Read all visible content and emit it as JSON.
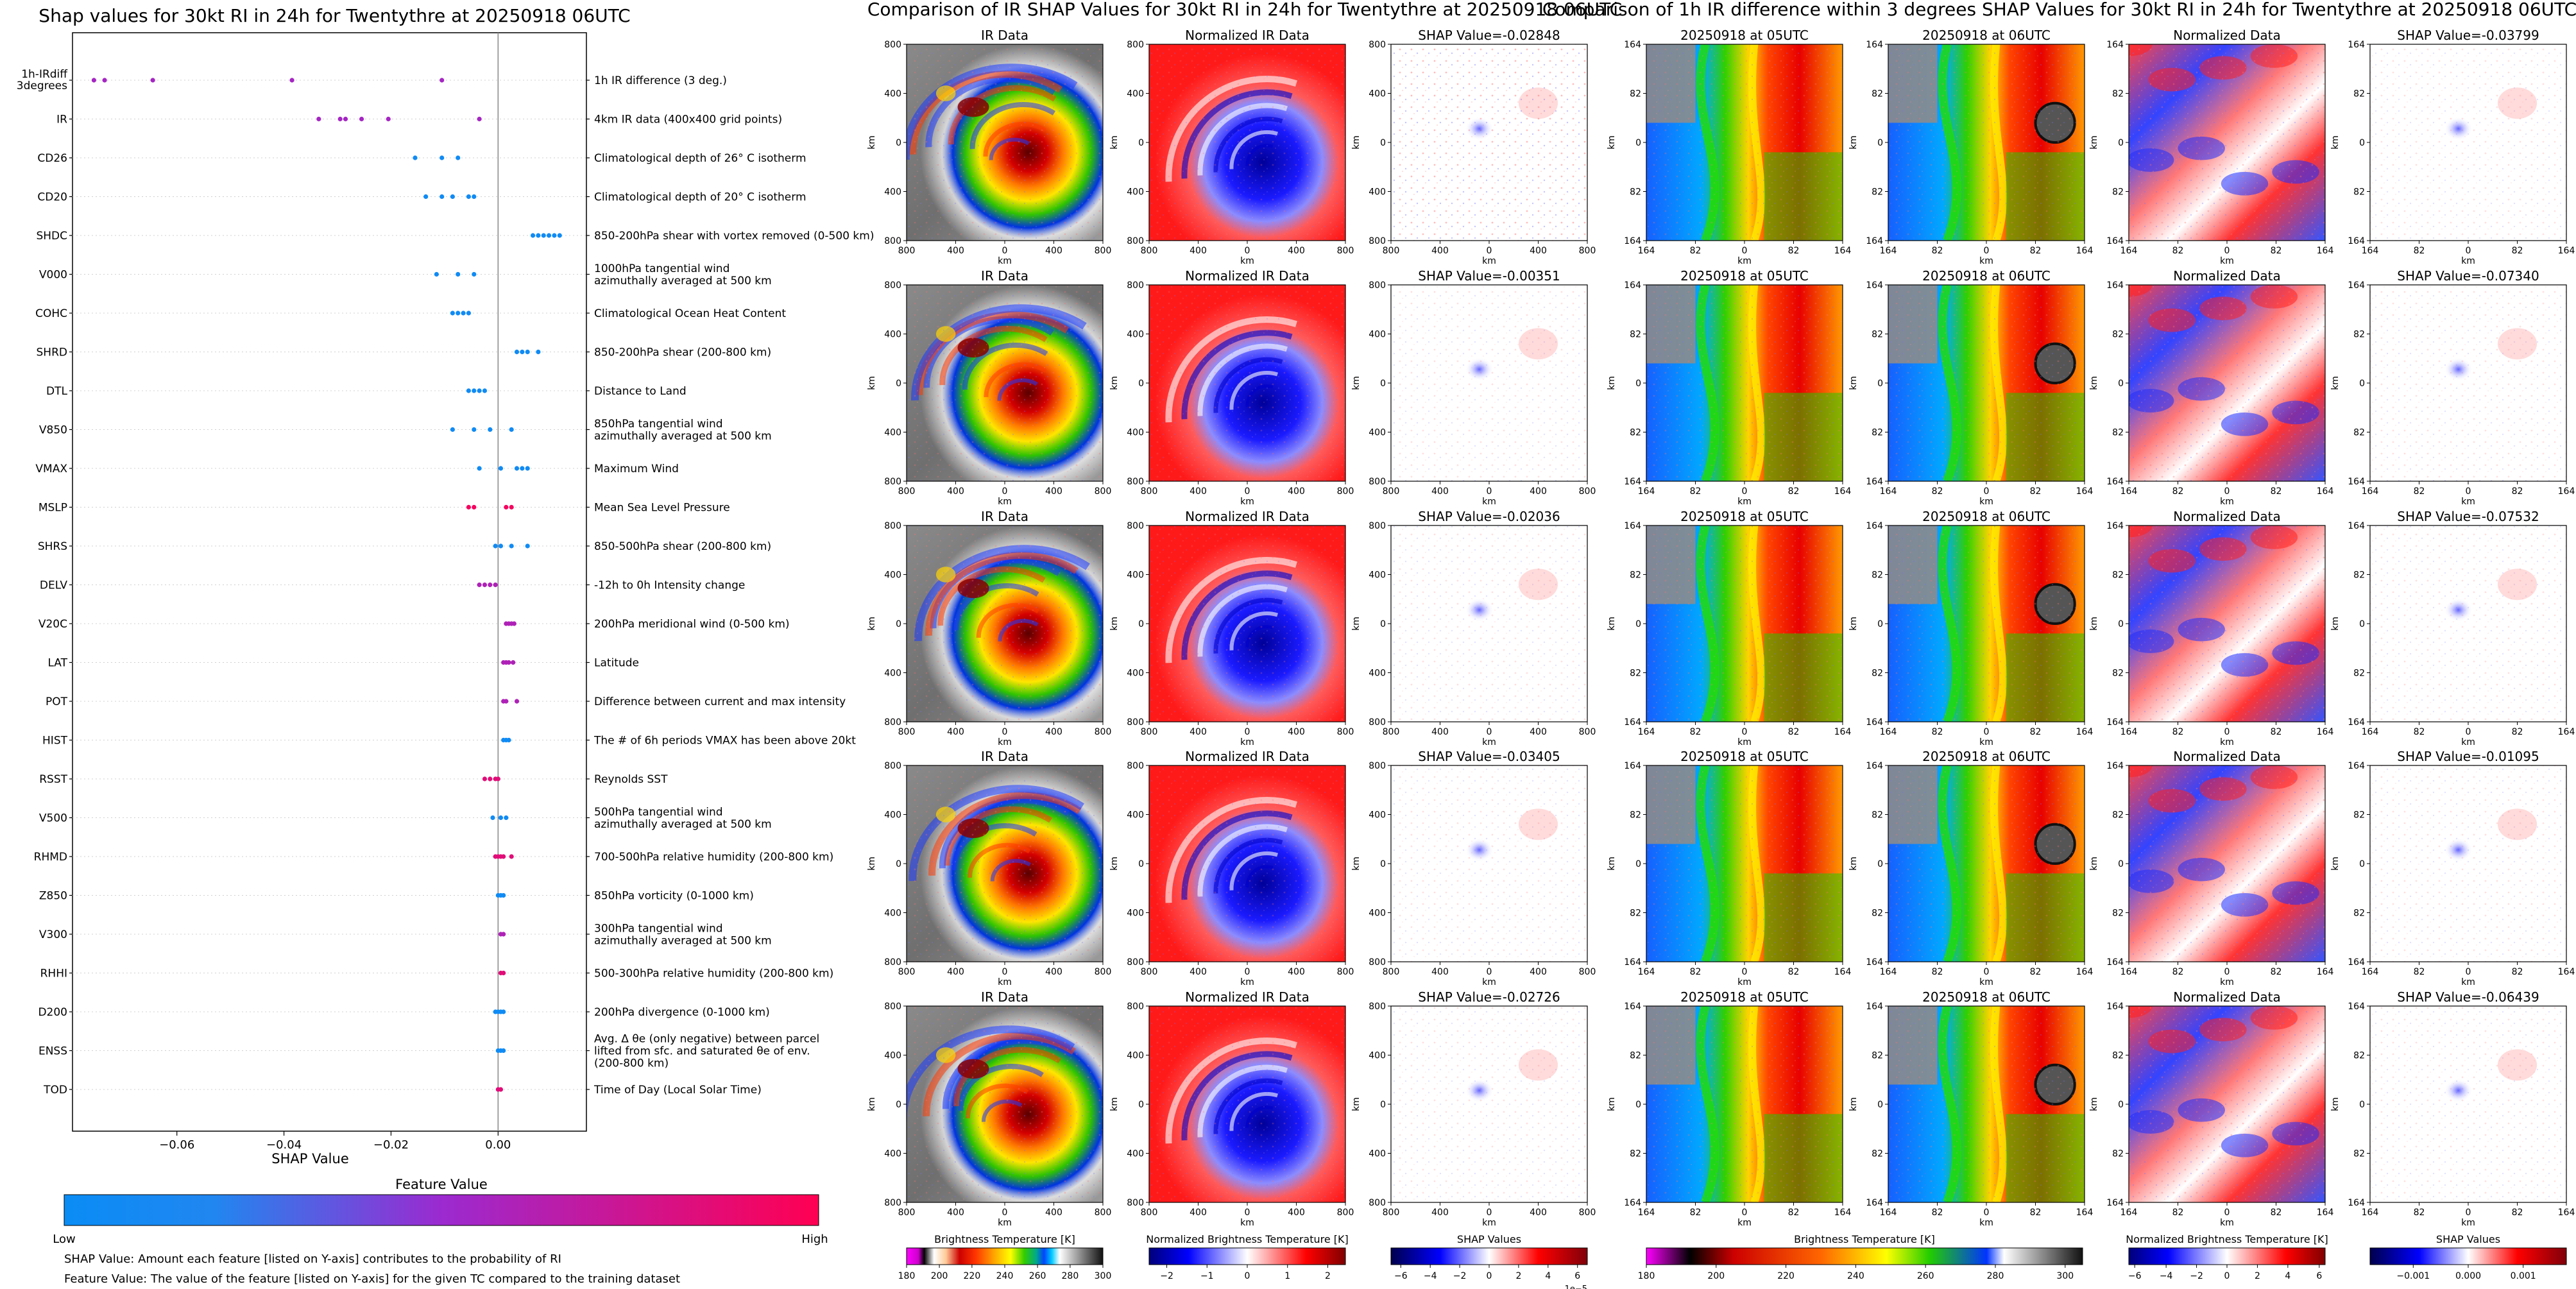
{
  "shap_panel": {
    "title": "Shap values for 30kt RI in 24h for Twentythre at 20250918 06UTC",
    "xlabel": "SHAP Value",
    "xticks": [
      "−0.06",
      "−0.04",
      "−0.02",
      "0.00"
    ],
    "colorbar": {
      "title": "Feature Value",
      "low_label": "Low",
      "high_label": "High"
    },
    "notes": [
      "SHAP Value: Amount each feature [listed on Y-axis] contributes to the probability of RI",
      "Feature Value: The value of the feature [listed on Y-axis] for the given TC compared to the training dataset"
    ]
  },
  "chart_data": {
    "type": "scatter",
    "xlim": [
      -0.0795,
      0.0165
    ],
    "features": [
      {
        "code": "1h-IRdiff 3degrees",
        "desc": "1h IR difference (3 deg.)",
        "c": 0.55,
        "v": [
          -0.0755,
          -0.0735,
          -0.0645,
          -0.0385,
          -0.0105
        ]
      },
      {
        "code": "IR",
        "desc": "4km IR data (400x400 grid points)",
        "c": 0.55,
        "v": [
          -0.0335,
          -0.0295,
          -0.0285,
          -0.0255,
          -0.0205,
          -0.0035
        ]
      },
      {
        "code": "CD26",
        "desc": "Climatological depth of 26° C isotherm",
        "c": 0.05,
        "v": [
          -0.0155,
          -0.0105,
          -0.0075
        ]
      },
      {
        "code": "CD20",
        "desc": "Climatological depth of 20° C isotherm",
        "c": 0.05,
        "v": [
          -0.0135,
          -0.0105,
          -0.0085,
          -0.0055,
          -0.0045
        ]
      },
      {
        "code": "SHDC",
        "desc": "850-200hPa shear with vortex removed (0-500 km)",
        "c": 0.05,
        "v": [
          0.0065,
          0.0075,
          0.0085,
          0.0095,
          0.0105,
          0.0115
        ]
      },
      {
        "code": "V000",
        "desc": "1000hPa tangential wind azimuthally averaged at 500 km",
        "c": 0.05,
        "v": [
          -0.0115,
          -0.0075,
          -0.0045
        ]
      },
      {
        "code": "COHC",
        "desc": "Climatological Ocean Heat Content",
        "c": 0.05,
        "v": [
          -0.0085,
          -0.0075,
          -0.0065,
          -0.0055
        ]
      },
      {
        "code": "SHRD",
        "desc": "850-200hPa shear (200-800 km)",
        "c": 0.05,
        "v": [
          0.0035,
          0.0045,
          0.0055,
          0.0075
        ]
      },
      {
        "code": "DTL",
        "desc": "Distance to Land",
        "c": 0.05,
        "v": [
          -0.0055,
          -0.0045,
          -0.0035,
          -0.0025
        ]
      },
      {
        "code": "V850",
        "desc": "850hPa tangential wind azimuthally averaged at 500 km",
        "c": 0.05,
        "v": [
          -0.0085,
          -0.0045,
          -0.0015,
          0.0025
        ]
      },
      {
        "code": "VMAX",
        "desc": "Maximum Wind",
        "c": 0.05,
        "v": [
          -0.0035,
          0.0005,
          0.0035,
          0.0045,
          0.0055
        ]
      },
      {
        "code": "MSLP",
        "desc": "Mean Sea Level Pressure",
        "c": 0.95,
        "v": [
          -0.0055,
          -0.0045,
          0.0015,
          0.0025
        ]
      },
      {
        "code": "SHRS",
        "desc": "850-500hPa shear (200-800 km)",
        "c": 0.05,
        "v": [
          -0.0005,
          0.0005,
          0.0025,
          0.0055
        ]
      },
      {
        "code": "DELV",
        "desc": "-12h to 0h Intensity change",
        "c": 0.6,
        "v": [
          -0.0035,
          -0.0025,
          -0.0015,
          -0.0005
        ]
      },
      {
        "code": "V20C",
        "desc": "200hPa meridional wind (0-500 km)",
        "c": 0.6,
        "v": [
          0.0015,
          0.002,
          0.0025,
          0.003
        ]
      },
      {
        "code": "LAT",
        "desc": "Latitude",
        "c": 0.6,
        "v": [
          0.001,
          0.0015,
          0.002,
          0.0028
        ]
      },
      {
        "code": "POT",
        "desc": "Difference between current and max intensity",
        "c": 0.6,
        "v": [
          0.001,
          0.0015,
          0.0035
        ]
      },
      {
        "code": "HIST",
        "desc": "The # of 6h periods VMAX has been above 20kt",
        "c": 0.05,
        "v": [
          0.001,
          0.0015,
          0.002
        ]
      },
      {
        "code": "RSST",
        "desc": "Reynolds SST",
        "c": 0.85,
        "v": [
          -0.0025,
          -0.0015,
          -0.0005,
          0.0
        ]
      },
      {
        "code": "V500",
        "desc": "500hPa tangential wind azimuthally averaged at 500 km",
        "c": 0.05,
        "v": [
          -0.001,
          0.0005,
          0.0015
        ]
      },
      {
        "code": "RHMD",
        "desc": "700-500hPa relative humidity (200-800 km)",
        "c": 0.85,
        "v": [
          -0.0005,
          0.0,
          0.0005,
          0.001,
          0.0025
        ]
      },
      {
        "code": "Z850",
        "desc": "850hPa vorticity (0-1000 km)",
        "c": 0.05,
        "v": [
          0.0,
          0.0005,
          0.001
        ]
      },
      {
        "code": "V300",
        "desc": "300hPa tangential wind azimuthally averaged at 500 km",
        "c": 0.6,
        "v": [
          0.0005,
          0.001
        ]
      },
      {
        "code": "RHHI",
        "desc": "500-300hPa relative humidity (200-800 km)",
        "c": 0.85,
        "v": [
          0.0005,
          0.001
        ]
      },
      {
        "code": "D200",
        "desc": "200hPa divergence (0-1000 km)",
        "c": 0.05,
        "v": [
          -0.0005,
          0.0,
          0.0005,
          0.001
        ]
      },
      {
        "code": "ENSS",
        "desc": "Avg. Δ θe (only negative) between parcel lifted from sfc. and saturated θe of env. (200-800 km)",
        "c": 0.05,
        "v": [
          0.0,
          0.0005,
          0.001
        ]
      },
      {
        "code": "TOD",
        "desc": "Time of Day (Local Solar Time)",
        "c": 0.85,
        "v": [
          0.0,
          0.0005
        ]
      }
    ]
  },
  "ir_block": {
    "title": "Comparison of IR SHAP Values for 30kt RI in 24h for Twentythre at 20250918 06UTC",
    "col_titles": [
      "IR Data",
      "Normalized IR Data"
    ],
    "shap_values": [
      "SHAP Value=-0.02848",
      "SHAP Value=-0.00351",
      "SHAP Value=-0.02036",
      "SHAP Value=-0.03405",
      "SHAP Value=-0.02726"
    ],
    "yticks": [
      "800",
      "400",
      "0",
      "400",
      "800"
    ],
    "xticks": [
      "800",
      "400",
      "0",
      "400",
      "800"
    ],
    "axis_label": "km",
    "colorbars": [
      {
        "label": "Brightness Temperature [K]",
        "ticks": [
          "180",
          "200",
          "220",
          "240",
          "260",
          "280",
          "300"
        ],
        "offset": ""
      },
      {
        "label": "Normalized Brightness Temperature [K]",
        "ticks": [
          "−2",
          "−1",
          "0",
          "1",
          "2"
        ],
        "offset": ""
      },
      {
        "label": "SHAP Values",
        "ticks": [
          "−6",
          "−4",
          "−2",
          "0",
          "2",
          "4",
          "6"
        ],
        "offset": "1e−5"
      }
    ]
  },
  "ir3_block": {
    "title": "Comparison of 1h IR difference within 3 degrees SHAP Values for 30kt RI in 24h for Twentythre at 20250918 06UTC",
    "col_titles": [
      "20250918 at 05UTC",
      "20250918 at 06UTC",
      "Normalized Data"
    ],
    "shap_values": [
      "SHAP Value=-0.03799",
      "SHAP Value=-0.07340",
      "SHAP Value=-0.07532",
      "SHAP Value=-0.01095",
      "SHAP Value=-0.06439"
    ],
    "yticks": [
      "164",
      "82",
      "0",
      "82",
      "164"
    ],
    "xticks": [
      "164",
      "82",
      "0",
      "82",
      "164"
    ],
    "axis_label": "km",
    "colorbars": [
      {
        "label": "Brightness Temperature [K]",
        "ticks": [
          "180",
          "200",
          "220",
          "240",
          "260",
          "280",
          "300"
        ],
        "offset": ""
      },
      {
        "label": "Normalized Brightness Temperature [K]",
        "ticks": [
          "−6",
          "−4",
          "−2",
          "0",
          "2",
          "4",
          "6"
        ],
        "offset": ""
      },
      {
        "label": "SHAP Values",
        "ticks": [
          "−0.001",
          "0.000",
          "0.001"
        ],
        "offset": ""
      }
    ]
  },
  "colors": {
    "low": "#1e88e5",
    "mid": "#8b3bd0",
    "high": "#ff0052"
  }
}
